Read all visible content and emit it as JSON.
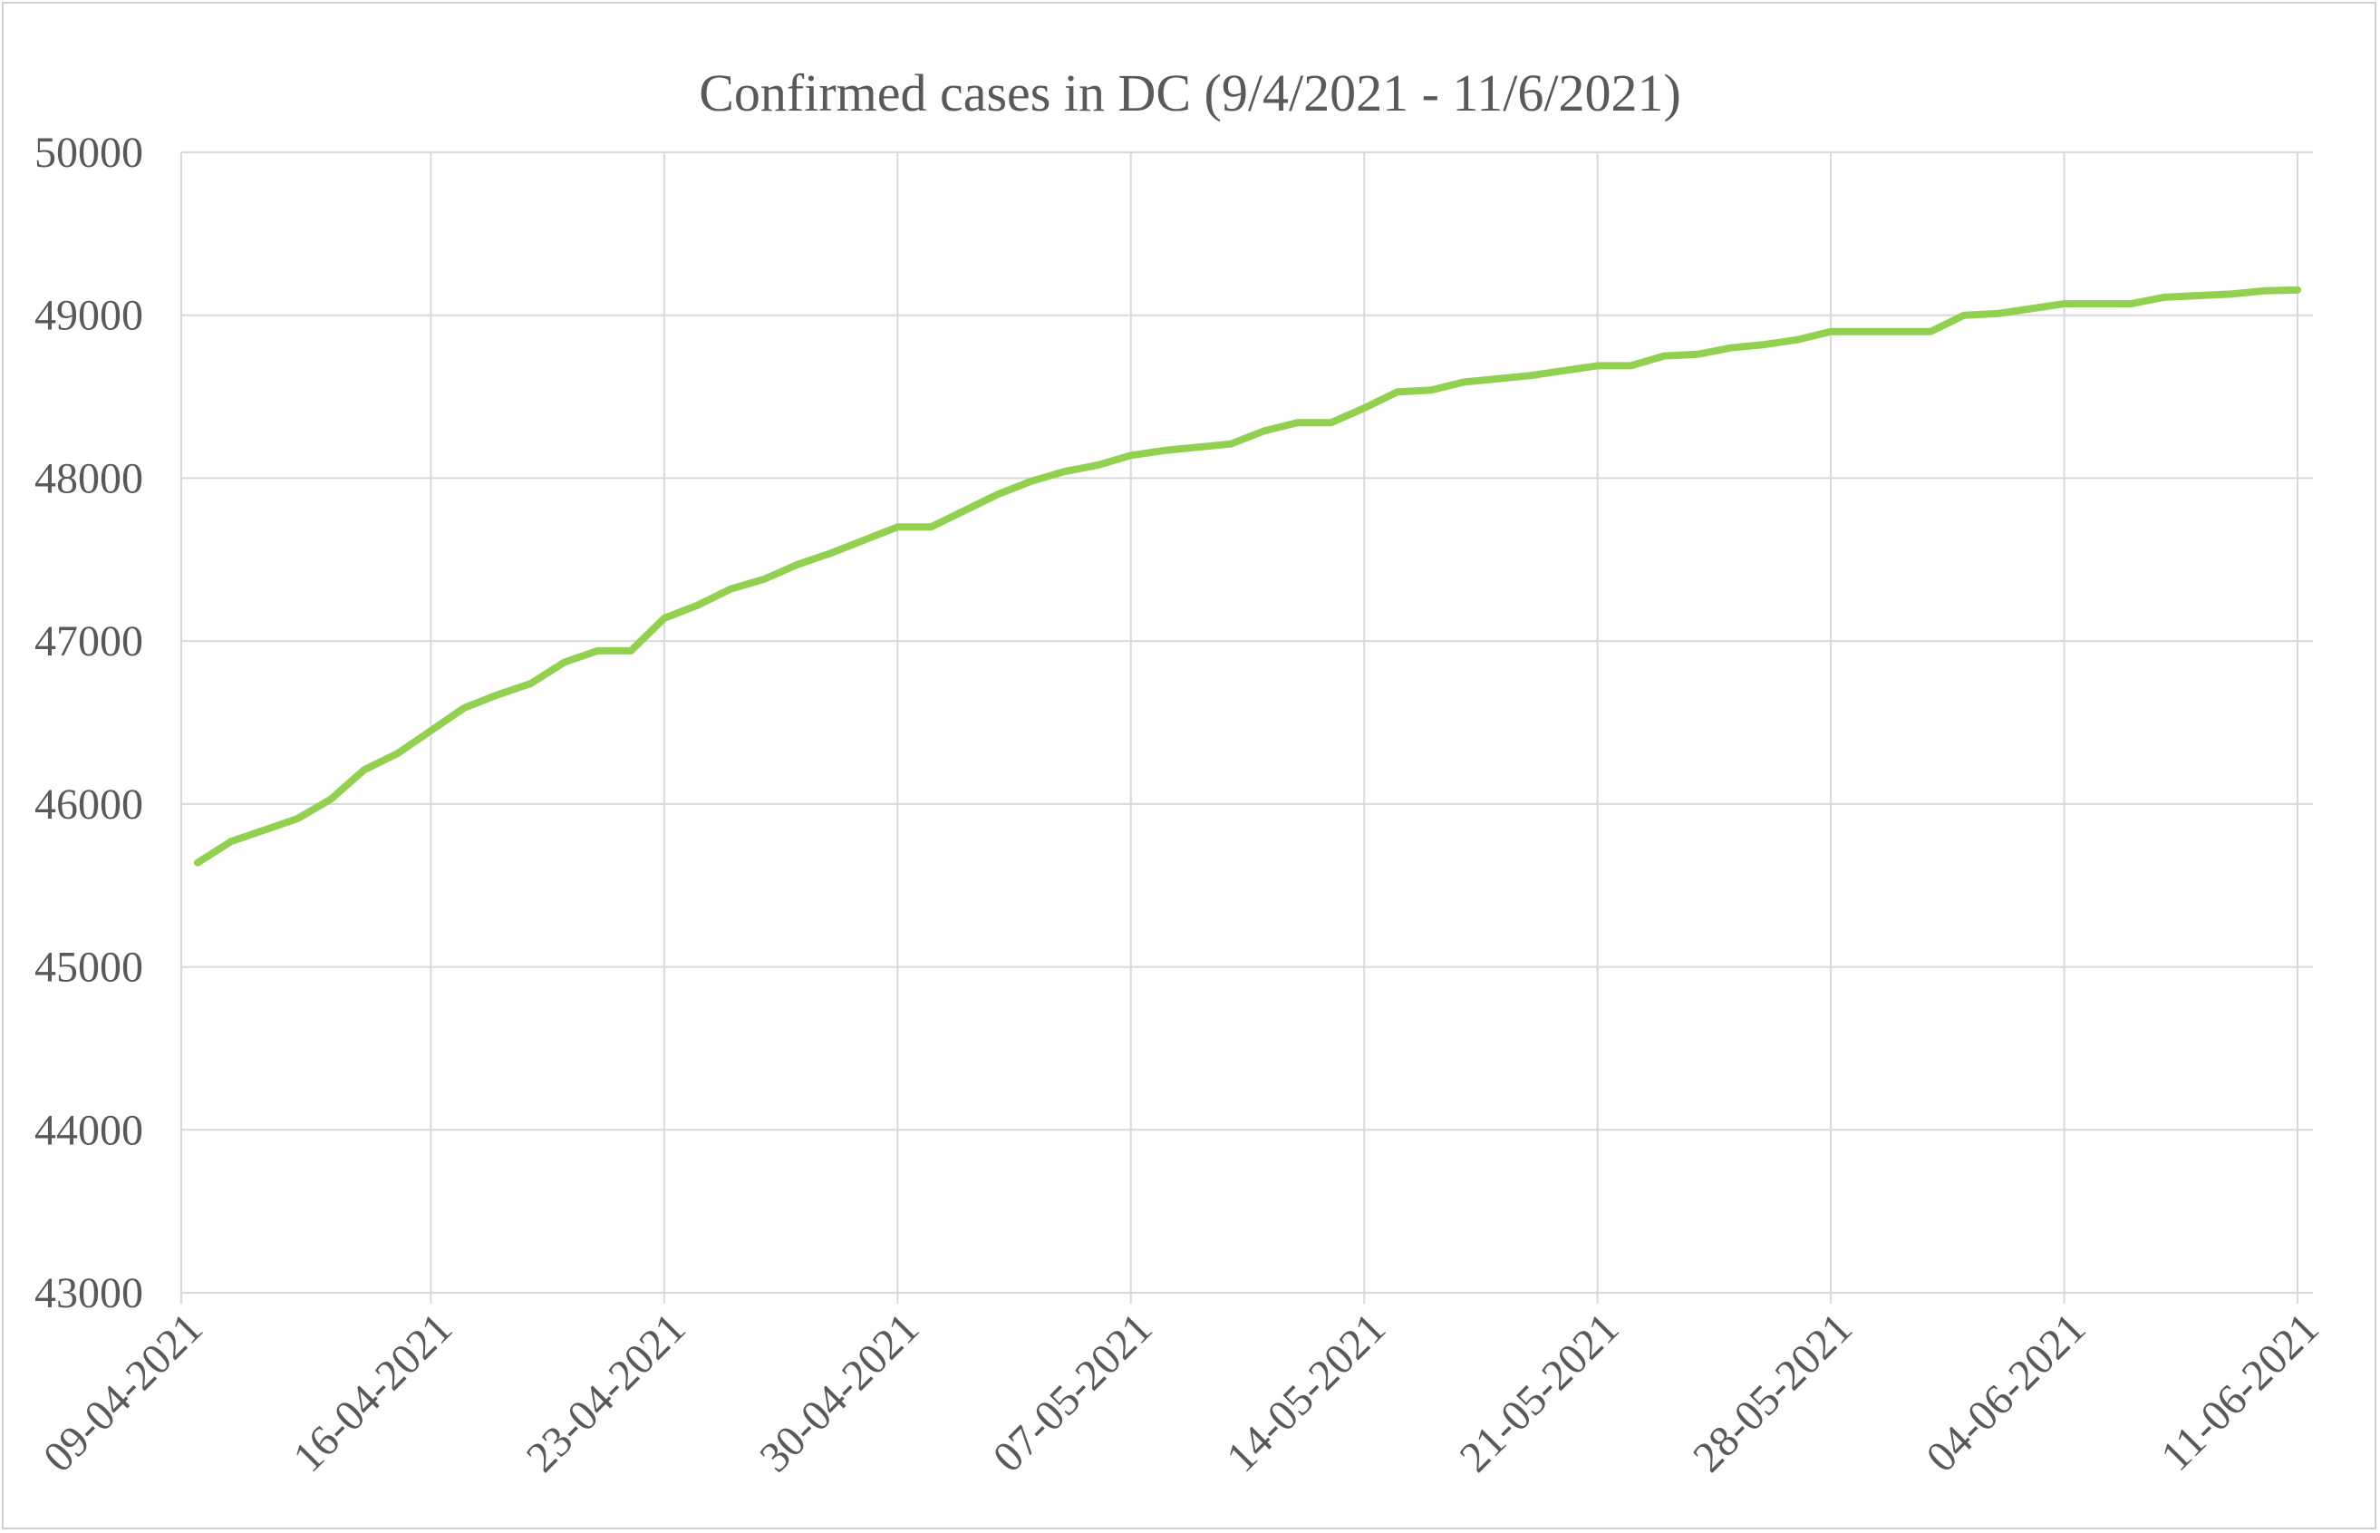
{
  "chart_data": {
    "type": "line",
    "title": "Confirmed cases in DC (9/4/2021 - 11/6/2021)",
    "xlabel": "",
    "ylabel": "",
    "ylim": [
      43000,
      50000
    ],
    "yticks": [
      "43000",
      "44000",
      "45000",
      "46000",
      "47000",
      "48000",
      "49000",
      "50000"
    ],
    "xticks": [
      "09-04-2021",
      "16-04-2021",
      "23-04-2021",
      "30-04-2021",
      "07-05-2021",
      "14-05-2021",
      "21-05-2021",
      "28-05-2021",
      "04-06-2021",
      "11-06-2021"
    ],
    "grid": true,
    "legend": "none",
    "line_color": "#92d050",
    "series": [
      {
        "x": [
          "09-04-2021",
          "10-04-2021",
          "11-04-2021",
          "12-04-2021",
          "13-04-2021",
          "14-04-2021",
          "15-04-2021",
          "16-04-2021",
          "17-04-2021",
          "18-04-2021",
          "19-04-2021",
          "20-04-2021",
          "21-04-2021",
          "22-04-2021",
          "23-04-2021",
          "24-04-2021",
          "25-04-2021",
          "26-04-2021",
          "27-04-2021",
          "28-04-2021",
          "29-04-2021",
          "30-04-2021",
          "01-05-2021",
          "02-05-2021",
          "03-05-2021",
          "04-05-2021",
          "05-05-2021",
          "06-05-2021",
          "07-05-2021",
          "08-05-2021",
          "09-05-2021",
          "10-05-2021",
          "11-05-2021",
          "12-05-2021",
          "13-05-2021",
          "14-05-2021",
          "15-05-2021",
          "16-05-2021",
          "17-05-2021",
          "18-05-2021",
          "19-05-2021",
          "20-05-2021",
          "21-05-2021",
          "22-05-2021",
          "23-05-2021",
          "24-05-2021",
          "25-05-2021",
          "26-05-2021",
          "27-05-2021",
          "28-05-2021",
          "29-05-2021",
          "30-05-2021",
          "31-05-2021",
          "01-06-2021",
          "02-06-2021",
          "03-06-2021",
          "04-06-2021",
          "05-06-2021",
          "06-06-2021",
          "07-06-2021",
          "08-06-2021",
          "09-06-2021",
          "10-06-2021",
          "11-06-2021"
        ],
        "values": [
          45640,
          45770,
          45840,
          45910,
          46030,
          46210,
          46310,
          46450,
          46590,
          46670,
          46740,
          46870,
          46940,
          46940,
          47140,
          47220,
          47320,
          47380,
          47470,
          47540,
          47620,
          47700,
          47700,
          47800,
          47900,
          47980,
          48040,
          48080,
          48140,
          48170,
          48190,
          48210,
          48290,
          48340,
          48340,
          48430,
          48530,
          48540,
          48590,
          48610,
          48630,
          48660,
          48690,
          48690,
          48750,
          48760,
          48800,
          48820,
          48850,
          48900,
          48900,
          48900,
          48900,
          49000,
          49010,
          49040,
          49070,
          49070,
          49070,
          49110,
          49120,
          49130,
          49150,
          49155
        ]
      }
    ]
  }
}
